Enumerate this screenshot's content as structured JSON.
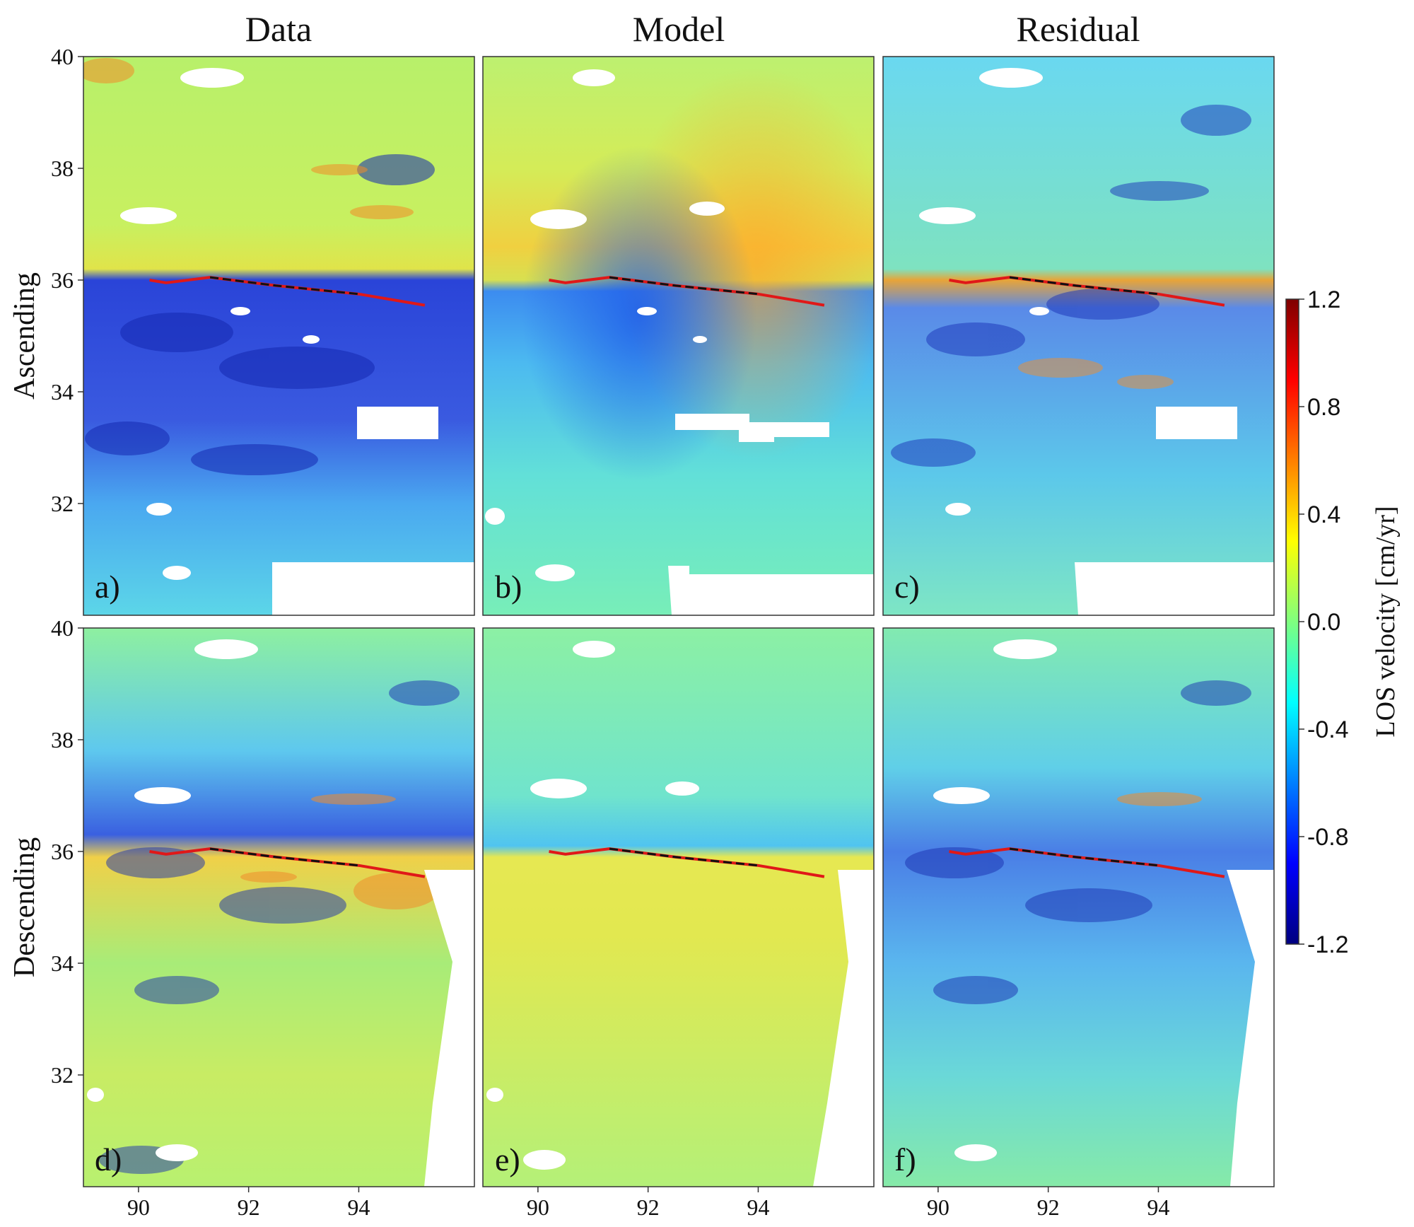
{
  "figure": {
    "columns": [
      "Data",
      "Model",
      "Residual"
    ],
    "rows": [
      "Ascending",
      "Descending"
    ],
    "panel_labels": [
      "a)",
      "b)",
      "c)",
      "d)",
      "e)",
      "f)"
    ]
  },
  "colorbar": {
    "label": "LOS velocity [cm/yr]",
    "range": [
      -1.2,
      1.2
    ],
    "ticks": [
      "1.2",
      "0.8",
      "0.4",
      "0.0",
      "-0.4",
      "-0.8",
      "-1.2"
    ],
    "colormap": "jet",
    "colors": [
      "#00007f",
      "#0000ff",
      "#007fff",
      "#00ffff",
      "#7fff7f",
      "#ffff00",
      "#ff7f00",
      "#ff0000",
      "#7f0000"
    ]
  },
  "chart_data": {
    "type": "heatmap",
    "description_units": "LOS velocity in cm/yr",
    "xlim": [
      89,
      96.1
    ],
    "ylim": [
      30,
      40
    ],
    "x_ticks": [
      "90",
      "92",
      "94"
    ],
    "y_ticks": [
      "40",
      "38",
      "36",
      "34",
      "32"
    ],
    "grid": false,
    "fault_trace_lonlat": [
      [
        90.2,
        36.0
      ],
      [
        90.5,
        35.95
      ],
      [
        91.3,
        36.05
      ],
      [
        92.5,
        35.9
      ],
      [
        94.0,
        35.75
      ],
      [
        95.2,
        35.55
      ]
    ],
    "dashed_segment_lonlat": [
      [
        91.3,
        36.05
      ],
      [
        92.5,
        35.9
      ],
      [
        94.0,
        35.75
      ]
    ],
    "panels": [
      {
        "label": "a)",
        "column": "Data",
        "row": "Ascending",
        "north_of_fault_mean": 0.15,
        "south_of_fault_mean": -0.7
      },
      {
        "label": "b)",
        "column": "Model",
        "row": "Ascending",
        "north_of_fault_mean": 0.4,
        "south_of_fault_mean": -0.5
      },
      {
        "label": "c)",
        "column": "Residual",
        "row": "Ascending",
        "north_of_fault_mean": -0.2,
        "south_of_fault_mean": -0.2
      },
      {
        "label": "d)",
        "column": "Data",
        "row": "Descending",
        "north_of_fault_mean": -0.3,
        "south_of_fault_mean": 0.2
      },
      {
        "label": "e)",
        "column": "Model",
        "row": "Descending",
        "north_of_fault_mean": -0.3,
        "south_of_fault_mean": 0.3
      },
      {
        "label": "f)",
        "column": "Residual",
        "row": "Descending",
        "north_of_fault_mean": -0.1,
        "south_of_fault_mean": -0.2
      }
    ]
  }
}
